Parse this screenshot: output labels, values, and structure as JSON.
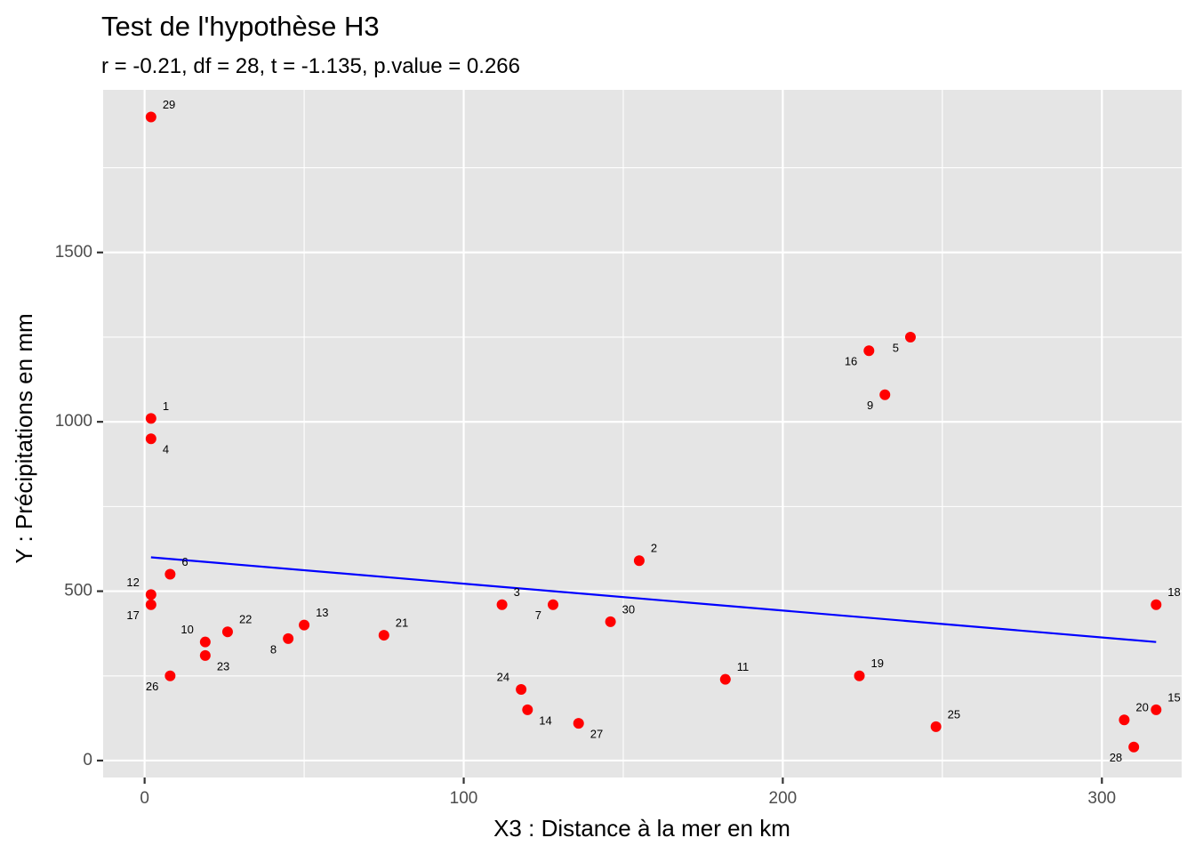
{
  "colors": {
    "panel_background": "#e5e5e5",
    "grid_major": "#ffffff",
    "point": "#ff0000",
    "regression_line": "#0000ff"
  },
  "chart_data": {
    "type": "scatter",
    "title": "Test de l'hypothèse H3",
    "subtitle": "r = -0.21, df = 28, t = -1.135, p.value = 0.266",
    "xlabel": "X3 : Distance à la mer en km",
    "ylabel": "Y : Précipitations en mm",
    "xlim": [
      -13,
      325
    ],
    "ylim": [
      -50,
      1980
    ],
    "x_ticks": [
      0,
      100,
      200,
      300
    ],
    "y_ticks": [
      0,
      500,
      1000,
      1500
    ],
    "x_minor_ticks": [
      50,
      150,
      250
    ],
    "y_minor_ticks": [
      250,
      750,
      1250,
      1750
    ],
    "grid": true,
    "legend": "none",
    "points": [
      {
        "id": "1",
        "x": 2,
        "y": 1010
      },
      {
        "id": "2",
        "x": 155,
        "y": 590
      },
      {
        "id": "3",
        "x": 112,
        "y": 460
      },
      {
        "id": "4",
        "x": 2,
        "y": 950
      },
      {
        "id": "5",
        "x": 240,
        "y": 1250
      },
      {
        "id": "6",
        "x": 8,
        "y": 550
      },
      {
        "id": "7",
        "x": 128,
        "y": 460
      },
      {
        "id": "8",
        "x": 45,
        "y": 360
      },
      {
        "id": "9",
        "x": 232,
        "y": 1080
      },
      {
        "id": "10",
        "x": 19,
        "y": 350
      },
      {
        "id": "11",
        "x": 182,
        "y": 240
      },
      {
        "id": "12",
        "x": 2,
        "y": 490
      },
      {
        "id": "13",
        "x": 50,
        "y": 400
      },
      {
        "id": "14",
        "x": 120,
        "y": 150
      },
      {
        "id": "15",
        "x": 317,
        "y": 150
      },
      {
        "id": "16",
        "x": 227,
        "y": 1210
      },
      {
        "id": "17",
        "x": 2,
        "y": 460
      },
      {
        "id": "18",
        "x": 317,
        "y": 460
      },
      {
        "id": "19",
        "x": 224,
        "y": 250
      },
      {
        "id": "20",
        "x": 307,
        "y": 120
      },
      {
        "id": "21",
        "x": 75,
        "y": 370
      },
      {
        "id": "22",
        "x": 26,
        "y": 380
      },
      {
        "id": "23",
        "x": 19,
        "y": 310
      },
      {
        "id": "24",
        "x": 118,
        "y": 210
      },
      {
        "id": "25",
        "x": 248,
        "y": 100
      },
      {
        "id": "26",
        "x": 8,
        "y": 250
      },
      {
        "id": "27",
        "x": 136,
        "y": 110
      },
      {
        "id": "28",
        "x": 310,
        "y": 40
      },
      {
        "id": "29",
        "x": 2,
        "y": 1900
      },
      {
        "id": "30",
        "x": 146,
        "y": 410
      }
    ],
    "regression_line": {
      "x": [
        2,
        317
      ],
      "y": [
        600,
        350
      ]
    }
  }
}
